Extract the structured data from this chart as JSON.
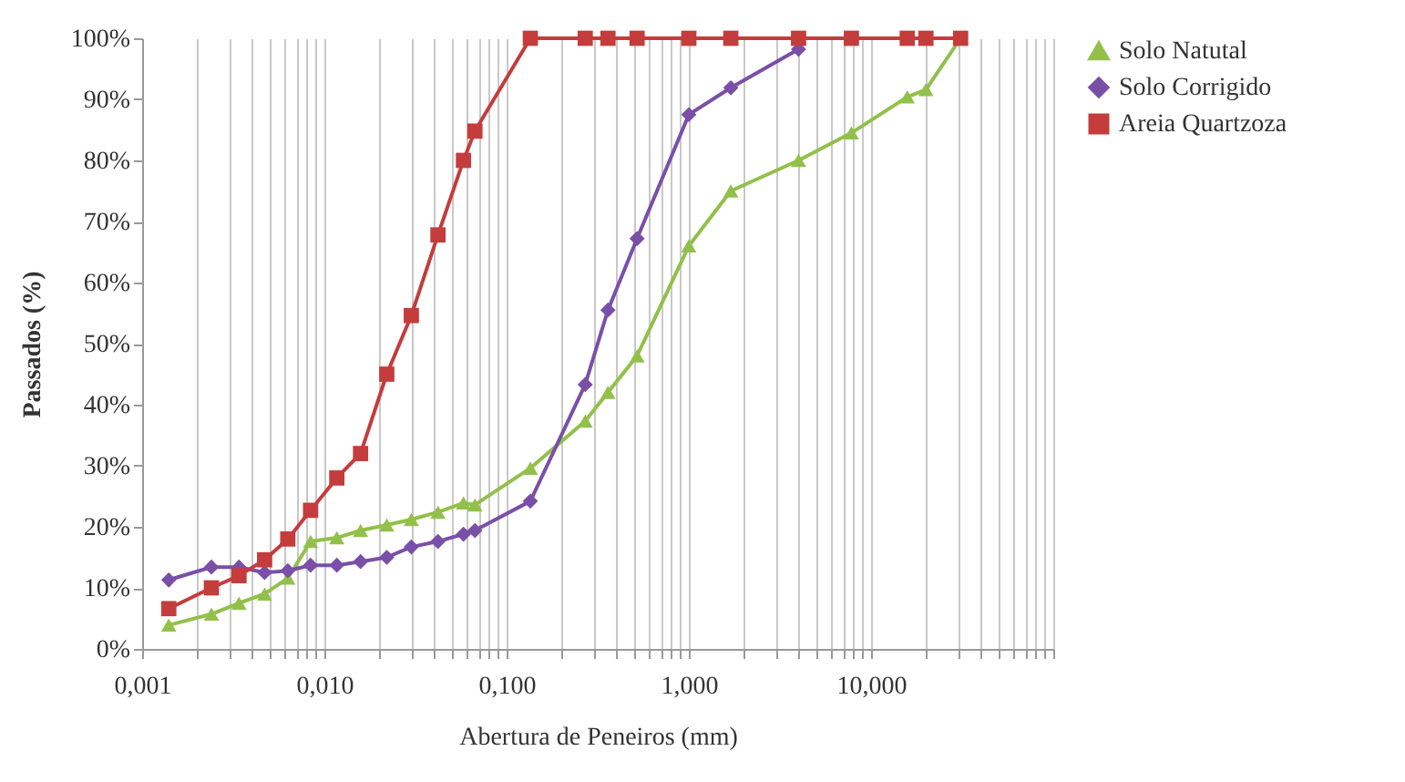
{
  "chart_data": {
    "type": "line",
    "xlabel": "Abertura de Peneiros (mm)",
    "ylabel": "Passados (%)",
    "log": "x",
    "grid": "x",
    "legend": "right",
    "x": [
      0.0014,
      0.0024,
      0.0034,
      0.0047,
      0.0063,
      0.0084,
      0.0117,
      0.0158,
      0.022,
      0.03,
      0.042,
      0.058,
      0.067,
      0.135,
      0.27,
      0.36,
      0.52,
      1.0,
      1.7,
      4.0,
      7.8,
      15.8,
      20,
      31
    ],
    "series": [
      {
        "name": "Solo Natutal",
        "color": "#92c04a",
        "marker": "triangle",
        "values": [
          3.9,
          5.7,
          7.5,
          9,
          11.6,
          17.6,
          18.2,
          19.4,
          20.3,
          21.2,
          22.4,
          23.9,
          23.6,
          29.6,
          37.3,
          42,
          48,
          66,
          75,
          80,
          84.5,
          90.4,
          91.6,
          100
        ]
      },
      {
        "name": "Solo Corrigido",
        "color": "#7a4fa8",
        "marker": "diamond",
        "values": [
          11.3,
          13.4,
          13.4,
          12.5,
          12.8,
          13.7,
          13.7,
          14.3,
          15,
          16.7,
          17.6,
          18.8,
          19.4,
          24.2,
          43.3,
          55.5,
          67.2,
          87.5,
          91.9,
          98.2,
          null,
          null,
          null,
          null
        ]
      },
      {
        "name": "Areia Quartzoza",
        "color": "#c43c3c",
        "marker": "square",
        "values": [
          6.6,
          10,
          12,
          14.6,
          18,
          22.7,
          28,
          32,
          45,
          54.6,
          67.8,
          80,
          84.8,
          100,
          100,
          100,
          100,
          100,
          100,
          100,
          100,
          100,
          100,
          100
        ]
      }
    ],
    "xlim": [
      0.001,
      100
    ],
    "xticks": [
      {
        "value": 0.001,
        "label": "0,001"
      },
      {
        "value": 0.002,
        "label": null
      },
      {
        "value": 0.003,
        "label": null
      },
      {
        "value": 0.004,
        "label": null
      },
      {
        "value": 0.005,
        "label": null
      },
      {
        "value": 0.006,
        "label": null
      },
      {
        "value": 0.007,
        "label": null
      },
      {
        "value": 0.008,
        "label": null
      },
      {
        "value": 0.009,
        "label": null
      },
      {
        "value": 0.01,
        "label": "0,010"
      },
      {
        "value": 0.02,
        "label": null
      },
      {
        "value": 0.03,
        "label": null
      },
      {
        "value": 0.04,
        "label": null
      },
      {
        "value": 0.05,
        "label": null
      },
      {
        "value": 0.06,
        "label": null
      },
      {
        "value": 0.07,
        "label": null
      },
      {
        "value": 0.08,
        "label": null
      },
      {
        "value": 0.09,
        "label": null
      },
      {
        "value": 0.1,
        "label": "0,100"
      },
      {
        "value": 0.2,
        "label": null
      },
      {
        "value": 0.3,
        "label": null
      },
      {
        "value": 0.4,
        "label": null
      },
      {
        "value": 0.5,
        "label": null
      },
      {
        "value": 0.6,
        "label": null
      },
      {
        "value": 0.7,
        "label": null
      },
      {
        "value": 0.8,
        "label": null
      },
      {
        "value": 0.9,
        "label": null
      },
      {
        "value": 1,
        "label": "1,000"
      },
      {
        "value": 2,
        "label": null
      },
      {
        "value": 3,
        "label": null
      },
      {
        "value": 4,
        "label": null
      },
      {
        "value": 5,
        "label": null
      },
      {
        "value": 6,
        "label": null
      },
      {
        "value": 7,
        "label": null
      },
      {
        "value": 8,
        "label": null
      },
      {
        "value": 9,
        "label": null
      },
      {
        "value": 10,
        "label": "10,000"
      },
      {
        "value": 20,
        "label": null
      },
      {
        "value": 30,
        "label": null
      },
      {
        "value": 40,
        "label": null
      },
      {
        "value": 50,
        "label": null
      },
      {
        "value": 60,
        "label": null
      },
      {
        "value": 70,
        "label": null
      },
      {
        "value": 80,
        "label": null
      },
      {
        "value": 90,
        "label": null
      },
      {
        "value": 100,
        "label": null
      }
    ],
    "ylim": [
      0,
      100
    ],
    "yticks": [
      {
        "value": 0,
        "label": "0%"
      },
      {
        "value": 10,
        "label": "10%"
      },
      {
        "value": 20,
        "label": "20%"
      },
      {
        "value": 30,
        "label": "30%"
      },
      {
        "value": 40,
        "label": "40%"
      },
      {
        "value": 50,
        "label": "50%"
      },
      {
        "value": 60,
        "label": "60%"
      },
      {
        "value": 70,
        "label": "70%"
      },
      {
        "value": 80,
        "label": "80%"
      },
      {
        "value": 90,
        "label": "90%"
      },
      {
        "value": 100,
        "label": "100%"
      }
    ]
  }
}
